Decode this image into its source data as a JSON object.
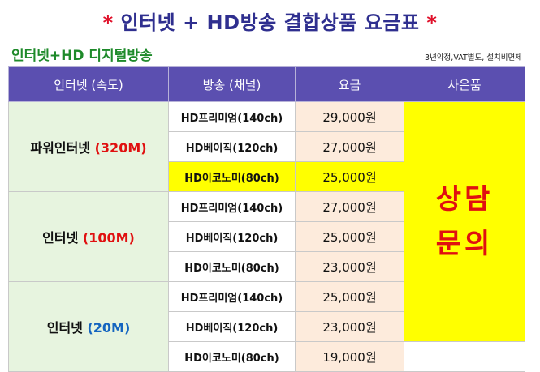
{
  "title": {
    "star_left": "*",
    "text": "인터넷 + HD방송 결합상품 요금표",
    "star_right": "*"
  },
  "subtitle": "인터넷+HD 디지털방송",
  "note": "3년약정,VAT별도, 설치비면제",
  "headers": {
    "internet": "인터넷 (속도)",
    "broadcast": "방송 (채널)",
    "fee": "요금",
    "gift": "사은품"
  },
  "groups": [
    {
      "name": "파워인터넷",
      "speed": "(320M)",
      "rows": [
        {
          "channel": "HD프리미엄(140ch)",
          "fee": "29,000원"
        },
        {
          "channel": "HD베이직(120ch)",
          "fee": "27,000원"
        },
        {
          "channel": "HD이코노미(80ch)",
          "fee": "25,000원"
        }
      ]
    },
    {
      "name": "인터넷",
      "speed": "(100M)",
      "rows": [
        {
          "channel": "HD프리미엄(140ch)",
          "fee": "27,000원"
        },
        {
          "channel": "HD베이직(120ch)",
          "fee": "25,000원"
        },
        {
          "channel": "HD이코노미(80ch)",
          "fee": "23,000원"
        }
      ]
    },
    {
      "name": "인터넷",
      "speed": "(20M)",
      "rows": [
        {
          "channel": "HD프리미엄(140ch)",
          "fee": "25,000원"
        },
        {
          "channel": "HD베이직(120ch)",
          "fee": "23,000원"
        },
        {
          "channel": "HD이코노미(80ch)",
          "fee": "19,000원"
        }
      ]
    }
  ],
  "gift": {
    "line1": "상담",
    "line2": "문의"
  },
  "colors": {
    "header_bg": "#5b4fb0",
    "highlight": "#ffff00",
    "speed_320": "#e01010",
    "speed_100": "#e01010",
    "speed_20": "#1565c0"
  }
}
